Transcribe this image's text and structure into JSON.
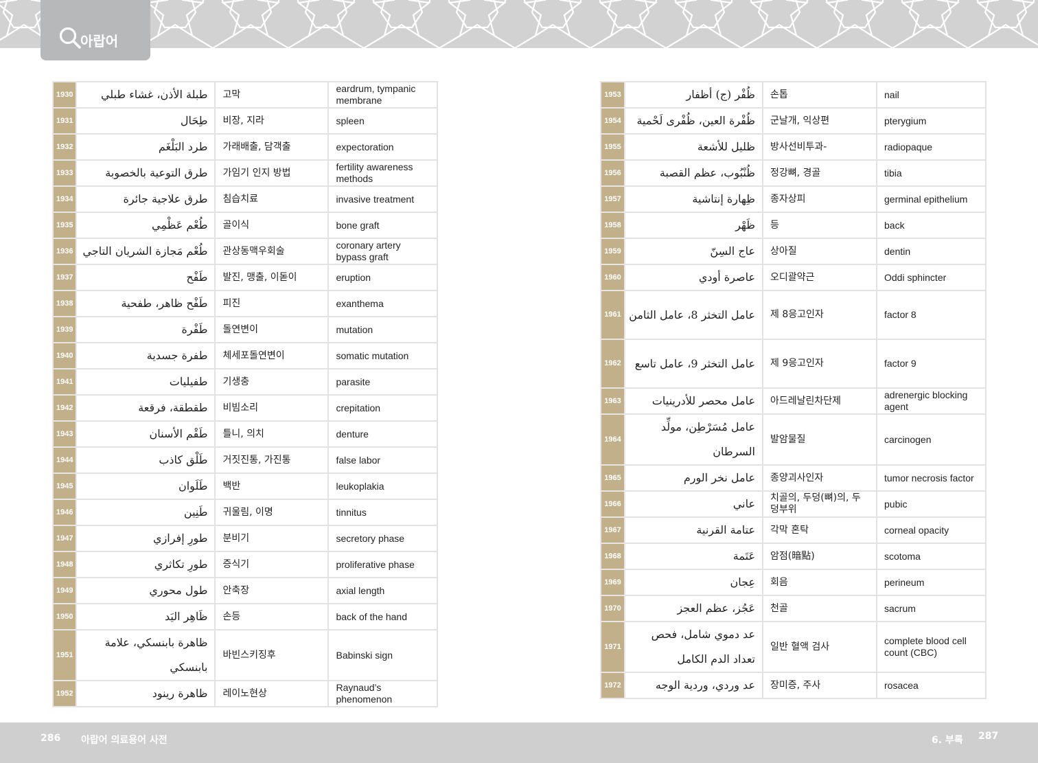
{
  "header": {
    "tab_label": "아랍어",
    "tab_icon": "search-icon",
    "accent_color": "#c2b08a",
    "pattern": "islamic-star-pattern"
  },
  "left_page": {
    "rows": [
      {
        "num": "1930",
        "ar": "طبلة الأذن، غشاء طبلي",
        "ko": "고막",
        "en": "eardrum, tympanic membrane"
      },
      {
        "num": "1931",
        "ar": "طِحَال",
        "ko": "비장, 지라",
        "en": "spleen"
      },
      {
        "num": "1932",
        "ar": "طرد البَلْغَم",
        "ko": "가래배출, 담객출",
        "en": "expectoration"
      },
      {
        "num": "1933",
        "ar": "طرق التوعية بالخصوبة",
        "ko": "가임기 인지 방법",
        "en": "fertility awareness methods"
      },
      {
        "num": "1934",
        "ar": "طرق علاجية جائرة",
        "ko": "침습치료",
        "en": "invasive treatment"
      },
      {
        "num": "1935",
        "ar": "طُعْم عَظْمِي",
        "ko": "골이식",
        "en": "bone graft"
      },
      {
        "num": "1936",
        "ar": "طُعْم مَجازة الشريان التاجي",
        "ko": "관상동맥우회술",
        "en": "coronary artery bypass graft"
      },
      {
        "num": "1937",
        "ar": "طَفْح",
        "ko": "발진, 맹출, 이돋이",
        "en": "eruption"
      },
      {
        "num": "1938",
        "ar": "طَفْح ظاهر، طفحية",
        "ko": "피진",
        "en": "exanthema"
      },
      {
        "num": "1939",
        "ar": "طَفْرة",
        "ko": "돌연변이",
        "en": "mutation"
      },
      {
        "num": "1940",
        "ar": "طفرة جسدية",
        "ko": "체세포돌연변이",
        "en": "somatic mutation"
      },
      {
        "num": "1941",
        "ar": "طفيليات",
        "ko": "기생충",
        "en": "parasite"
      },
      {
        "num": "1942",
        "ar": "طقطقة، فرقعة",
        "ko": "비빔소리",
        "en": "crepitation"
      },
      {
        "num": "1943",
        "ar": "طَقْم الأسنان",
        "ko": "틀니, 의치",
        "en": "denture"
      },
      {
        "num": "1944",
        "ar": "طَلْق كاذب",
        "ko": "거짓진통, 가진통",
        "en": "false labor"
      },
      {
        "num": "1945",
        "ar": "طَلَوان",
        "ko": "백반",
        "en": "leukoplakia"
      },
      {
        "num": "1946",
        "ar": "طَنِين",
        "ko": "귀울림, 이명",
        "en": "tinnitus"
      },
      {
        "num": "1947",
        "ar": "طورِ إفرازي",
        "ko": "분비기",
        "en": "secretory phase"
      },
      {
        "num": "1948",
        "ar": "طورِ تكاثري",
        "ko": "증식기",
        "en": "proliferative phase"
      },
      {
        "num": "1949",
        "ar": "طول محوري",
        "ko": "안축장",
        "en": "axial length"
      },
      {
        "num": "1950",
        "ar": "ظَاهِر اليَد",
        "ko": "손등",
        "en": "back of the hand"
      },
      {
        "num": "1951",
        "ar": "ظاهرة بابنسكي، علامة بابنسكي",
        "ko": "바빈스키징후",
        "en": "Babinski sign"
      },
      {
        "num": "1952",
        "ar": "ظاهرة رينود",
        "ko": "레이노현상",
        "en": "Raynaud’s phenomenon"
      }
    ]
  },
  "right_page": {
    "rows": [
      {
        "num": "1953",
        "ar": "ظُفْر (ج) أظفار",
        "ko": "손톱",
        "en": "nail"
      },
      {
        "num": "1954",
        "ar": "ظُفْرة العين، ظُفْرى لَحْمية",
        "ko": "군날개, 익상편",
        "en": "pterygium"
      },
      {
        "num": "1955",
        "ar": "ظليل للأشعة",
        "ko": "방사선비투과-",
        "en": "radiopaque"
      },
      {
        "num": "1956",
        "ar": "ظُنْبُوب، عظم القصبة",
        "ko": "정강뼈, 경골",
        "en": "tibia"
      },
      {
        "num": "1957",
        "ar": "ظِهارة إنتاشية",
        "ko": "종자상피",
        "en": "germinal epithelium"
      },
      {
        "num": "1958",
        "ar": "ظَهْر",
        "ko": "등",
        "en": "back"
      },
      {
        "num": "1959",
        "ar": "عاج السِنّ",
        "ko": "상아질",
        "en": "dentin"
      },
      {
        "num": "1960",
        "ar": "عاصرة أودي",
        "ko": "오디괄약근",
        "en": "Oddi sphincter"
      },
      {
        "num": "1961",
        "ar": "عامل التخثر 8، عامل الثامن",
        "ko": "제 8응고인자",
        "en": "factor 8"
      },
      {
        "num": "1962",
        "ar": "عامل التخثر 9، عامل تاسع",
        "ko": "제 9응고인자",
        "en": "factor 9"
      },
      {
        "num": "1963",
        "ar": "عامل محصر للأدرينيات",
        "ko": "아드레날린차단제",
        "en": "adrenergic blocking agent"
      },
      {
        "num": "1964",
        "ar": "عامل مُسَرْطِن، مولِّد السرطان",
        "ko": "발암물질",
        "en": "carcinogen"
      },
      {
        "num": "1965",
        "ar": "عامل نخر الورم",
        "ko": "종양괴사인자",
        "en": "tumor necrosis factor"
      },
      {
        "num": "1966",
        "ar": "عاني",
        "ko": "치골의, 두덩(뼈)의, 두덩부위",
        "en": "pubic"
      },
      {
        "num": "1967",
        "ar": "عتامة القرنية",
        "ko": "각막 혼탁",
        "en": "corneal opacity"
      },
      {
        "num": "1968",
        "ar": "عَتَمة",
        "ko": "암점(暗點)",
        "en": "scotoma"
      },
      {
        "num": "1969",
        "ar": "عِجان",
        "ko": "회음",
        "en": "perineum"
      },
      {
        "num": "1970",
        "ar": "عَجُز، عظم العجز",
        "ko": "천골",
        "en": "sacrum"
      },
      {
        "num": "1971",
        "ar": "عد دموي شامل، فحص تعداد الدم الكامل",
        "ko": "일반 혈액 검사",
        "en": "complete blood cell count (CBC)"
      },
      {
        "num": "1972",
        "ar": "عد وردي، وردية الوجه",
        "ko": "장미증, 주사",
        "en": "rosacea"
      }
    ]
  },
  "footer": {
    "left_page_number": "286",
    "left_title": "아랍어 의료용어 사전",
    "right_section": "6. 부록",
    "right_page_number": "287"
  }
}
